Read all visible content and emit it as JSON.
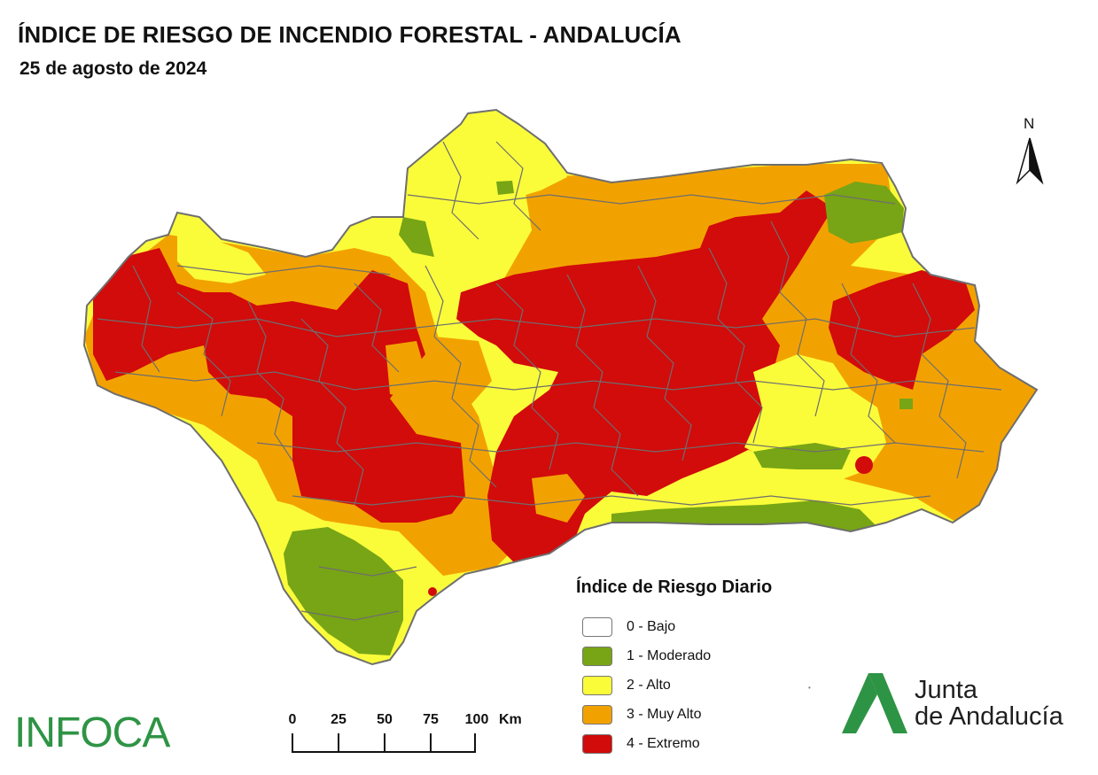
{
  "header": {
    "title": "ÍNDICE DE RIESGO DE INCENDIO FORESTAL - ANDALUCÍA",
    "date": "25 de agosto de 2024"
  },
  "north_arrow": {
    "label": "N"
  },
  "legend": {
    "title": "Índice de Riesgo Diario",
    "items": [
      {
        "label": "0 - Bajo",
        "color": "#ffffff"
      },
      {
        "label": "1 - Moderado",
        "color": "#77a515"
      },
      {
        "label": "2 - Alto",
        "color": "#fafc3a"
      },
      {
        "label": "3 - Muy Alto",
        "color": "#f2a200"
      },
      {
        "label": "4 - Extremo",
        "color": "#d20b0b"
      }
    ]
  },
  "scale_bar": {
    "ticks": [
      "0",
      "25",
      "50",
      "75",
      "100"
    ],
    "unit": "Km"
  },
  "logos": {
    "infoca": "INFOCA",
    "junta_line1": "Junta",
    "junta_line2": "de Andalucía"
  },
  "colors": {
    "border": "#6e6e6e",
    "infoca_green": "#2e9445",
    "junta_green": "#2e9445"
  }
}
